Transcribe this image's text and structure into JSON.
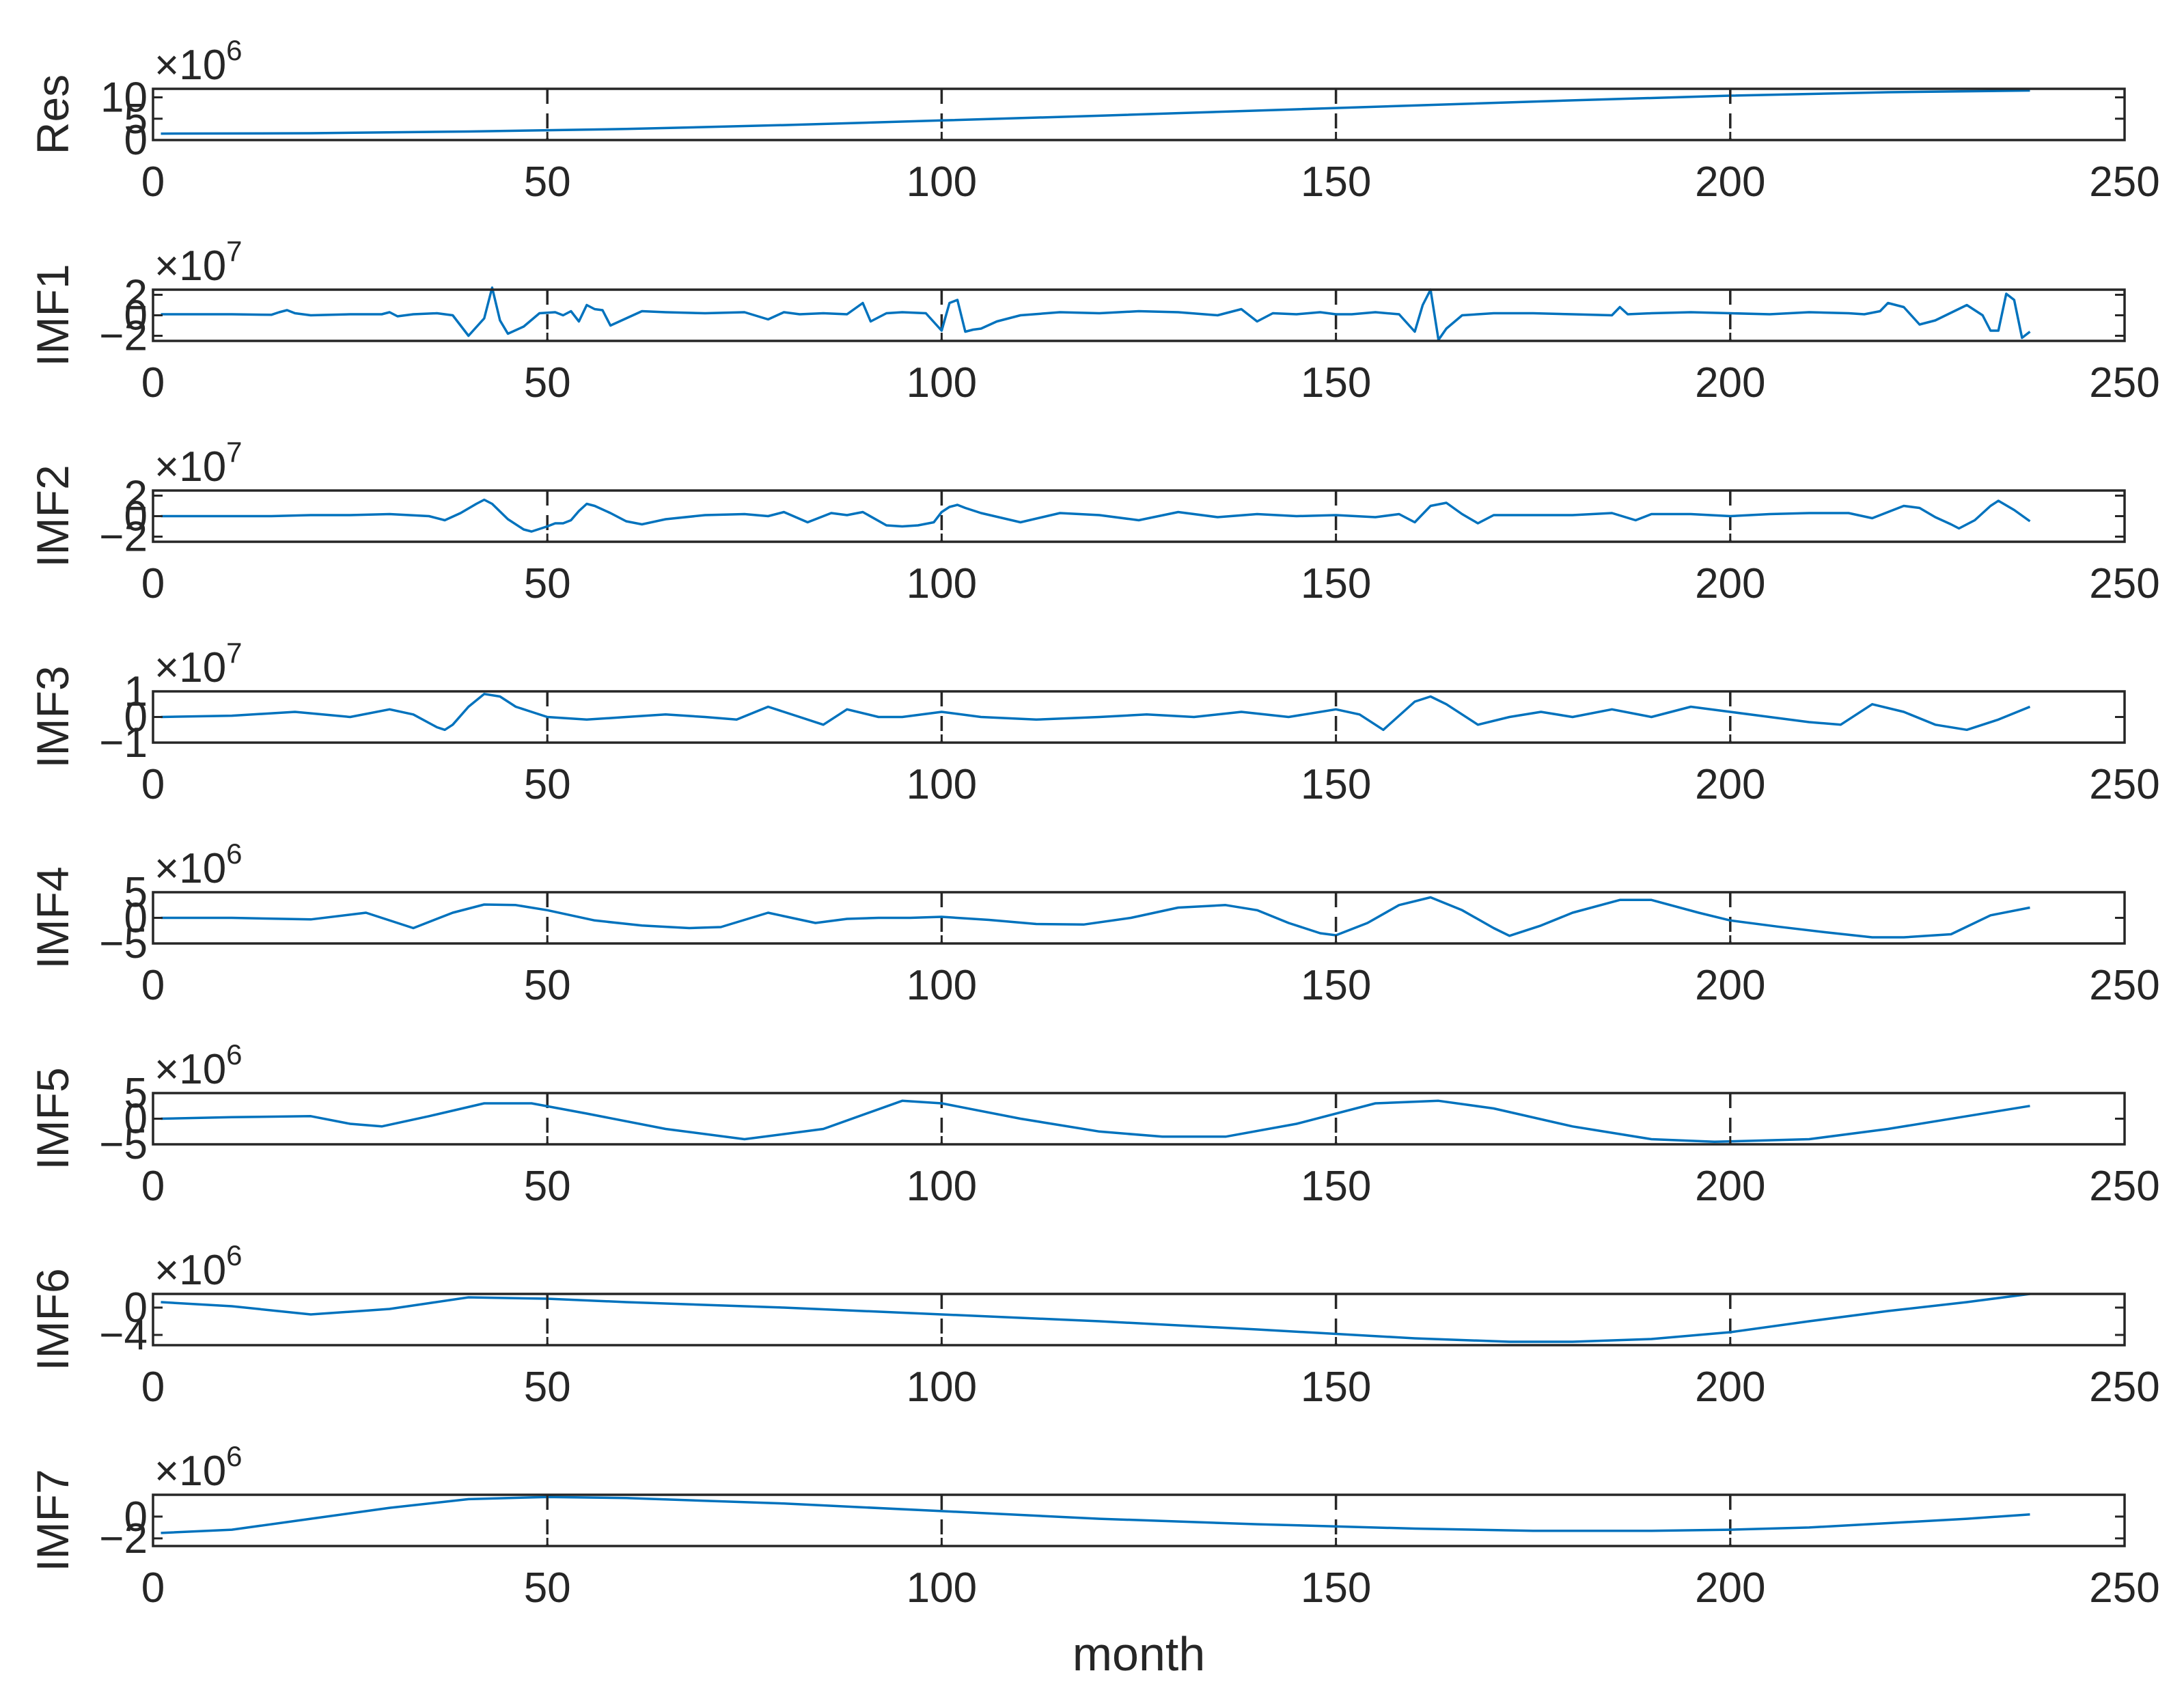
{
  "figure": {
    "xlabel": "month"
  },
  "chart_data": [
    {
      "type": "line",
      "ylabel": "Res",
      "exponent_base": "×10",
      "exponent_power": "6",
      "xlim": [
        0,
        250
      ],
      "x_ticks": [
        "0",
        "50",
        "100",
        "150",
        "200",
        "250"
      ],
      "x_ticks_num": [
        0,
        50,
        100,
        150,
        200,
        250
      ],
      "ylim": [
        0,
        12
      ],
      "y_ticks": [
        "0",
        "5",
        "10"
      ],
      "y_ticks_num": [
        0,
        5,
        10
      ],
      "dashed_vlines": [
        50,
        100,
        150,
        200
      ],
      "x": [
        1,
        20,
        40,
        60,
        80,
        100,
        120,
        140,
        160,
        180,
        200,
        220,
        238
      ],
      "values": [
        1.5,
        1.6,
        2.0,
        2.6,
        3.5,
        4.6,
        5.7,
        6.9,
        8.1,
        9.3,
        10.4,
        11.2,
        11.6
      ]
    },
    {
      "type": "line",
      "ylabel": "IMF1",
      "exponent_base": "×10",
      "exponent_power": "7",
      "xlim": [
        0,
        250
      ],
      "x_ticks": [
        "0",
        "50",
        "100",
        "150",
        "200",
        "250"
      ],
      "x_ticks_num": [
        0,
        50,
        100,
        150,
        200,
        250
      ],
      "ylim": [
        -2.5,
        2.5
      ],
      "y_ticks": [
        "-2",
        "0",
        "2"
      ],
      "y_ticks_num": [
        -2,
        0,
        2
      ],
      "dashed_vlines": [
        50,
        100,
        150,
        200
      ],
      "x": [
        1,
        10,
        15,
        16,
        17,
        18,
        20,
        25,
        29,
        30,
        31,
        33,
        36,
        38,
        40,
        42,
        43,
        44,
        45,
        47,
        49,
        51,
        52,
        53,
        54,
        55,
        56,
        57,
        58,
        60,
        62,
        65,
        70,
        75,
        78,
        80,
        82,
        85,
        88,
        90,
        91,
        93,
        95,
        98,
        100,
        101,
        102,
        103,
        104,
        105,
        107,
        110,
        115,
        120,
        125,
        130,
        135,
        138,
        140,
        142,
        145,
        148,
        150,
        152,
        155,
        158,
        160,
        161,
        162,
        163,
        164,
        166,
        170,
        175,
        180,
        185,
        186,
        187,
        190,
        195,
        200,
        205,
        210,
        215,
        217,
        219,
        220,
        222,
        224,
        226,
        230,
        232,
        233,
        234,
        235,
        236,
        237,
        238
      ],
      "values": [
        0.1,
        0.1,
        0.05,
        0.3,
        0.5,
        0.2,
        0.0,
        0.1,
        0.1,
        0.3,
        -0.1,
        0.1,
        0.2,
        0.0,
        -2.0,
        -0.3,
        2.7,
        -0.5,
        -1.8,
        -1.1,
        0.2,
        0.3,
        0.0,
        0.4,
        -0.6,
        1.0,
        0.6,
        0.5,
        -1.0,
        -0.3,
        0.4,
        0.3,
        0.2,
        0.3,
        -0.4,
        0.3,
        0.1,
        0.2,
        0.1,
        1.2,
        -0.6,
        0.2,
        0.3,
        0.2,
        -1.5,
        1.2,
        1.5,
        -1.6,
        -1.4,
        -1.3,
        -0.6,
        0.0,
        0.3,
        0.2,
        0.4,
        0.3,
        0.0,
        0.6,
        -0.6,
        0.2,
        0.1,
        0.3,
        0.1,
        0.1,
        0.3,
        0.1,
        -1.6,
        1.0,
        2.5,
        -2.4,
        -1.3,
        0.0,
        0.2,
        0.2,
        0.1,
        0.0,
        0.8,
        0.1,
        0.2,
        0.3,
        0.2,
        0.1,
        0.3,
        0.2,
        0.1,
        0.4,
        1.2,
        0.8,
        -0.9,
        -0.5,
        1.0,
        0.0,
        -1.5,
        -1.5,
        2.1,
        1.5,
        -2.2,
        -1.6
      ]
    },
    {
      "type": "line",
      "ylabel": "IMF2",
      "exponent_base": "×10",
      "exponent_power": "7",
      "xlim": [
        0,
        250
      ],
      "x_ticks": [
        "0",
        "50",
        "100",
        "150",
        "200",
        "250"
      ],
      "x_ticks_num": [
        0,
        50,
        100,
        150,
        200,
        250
      ],
      "ylim": [
        -2.5,
        2.5
      ],
      "y_ticks": [
        "-2",
        "0",
        "2"
      ],
      "y_ticks_num": [
        -2,
        0,
        2
      ],
      "dashed_vlines": [
        50,
        100,
        150,
        200
      ],
      "x": [
        1,
        15,
        20,
        25,
        30,
        35,
        37,
        39,
        41,
        42,
        43,
        45,
        47,
        48,
        50,
        51,
        52,
        53,
        54,
        55,
        56,
        58,
        60,
        62,
        65,
        70,
        75,
        78,
        80,
        83,
        86,
        88,
        90,
        93,
        95,
        97,
        99,
        100,
        101,
        102,
        103,
        105,
        110,
        115,
        120,
        125,
        130,
        135,
        140,
        145,
        150,
        155,
        158,
        160,
        162,
        164,
        166,
        168,
        170,
        175,
        180,
        185,
        188,
        190,
        195,
        200,
        205,
        210,
        215,
        218,
        220,
        222,
        224,
        226,
        228,
        229,
        231,
        233,
        234,
        236,
        238
      ],
      "values": [
        0.0,
        0.0,
        0.1,
        0.1,
        0.2,
        0.0,
        -0.4,
        0.3,
        1.2,
        1.6,
        1.2,
        -0.3,
        -1.3,
        -1.5,
        -1.0,
        -0.7,
        -0.7,
        -0.4,
        0.5,
        1.2,
        1.0,
        0.3,
        -0.5,
        -0.8,
        -0.3,
        0.1,
        0.2,
        0.0,
        0.4,
        -0.6,
        0.3,
        0.1,
        0.4,
        -0.9,
        -1.0,
        -0.9,
        -0.6,
        0.4,
        0.9,
        1.1,
        0.8,
        0.3,
        -0.6,
        0.3,
        0.1,
        -0.4,
        0.4,
        -0.1,
        0.2,
        0.0,
        0.1,
        -0.1,
        0.2,
        -0.6,
        1.0,
        1.3,
        0.2,
        -0.7,
        0.1,
        0.1,
        0.1,
        0.3,
        -0.4,
        0.2,
        0.2,
        0.0,
        0.2,
        0.3,
        0.3,
        -0.2,
        0.4,
        1.0,
        0.8,
        -0.1,
        -0.8,
        -1.2,
        -0.4,
        1.0,
        1.5,
        0.6,
        -0.5
      ]
    },
    {
      "type": "line",
      "ylabel": "IMF3",
      "exponent_base": "×10",
      "exponent_power": "7",
      "xlim": [
        0,
        250
      ],
      "x_ticks": [
        "0",
        "50",
        "100",
        "150",
        "200",
        "250"
      ],
      "x_ticks_num": [
        0,
        50,
        100,
        150,
        200,
        250
      ],
      "ylim": [
        -1,
        1
      ],
      "y_ticks": [
        "-1",
        "0",
        "1"
      ],
      "y_ticks_num": [
        -1,
        0,
        1
      ],
      "dashed_vlines": [
        50,
        100,
        150,
        200
      ],
      "x": [
        1,
        10,
        18,
        25,
        30,
        33,
        36,
        37,
        38,
        40,
        42,
        44,
        46,
        48,
        50,
        55,
        60,
        65,
        70,
        74,
        78,
        82,
        85,
        88,
        92,
        95,
        100,
        105,
        112,
        120,
        126,
        132,
        138,
        144,
        150,
        153,
        156,
        160,
        162,
        164,
        168,
        172,
        176,
        180,
        185,
        190,
        195,
        200,
        205,
        210,
        214,
        218,
        222,
        226,
        230,
        234,
        238
      ],
      "values": [
        0.0,
        0.05,
        0.2,
        0.0,
        0.3,
        0.1,
        -0.4,
        -0.5,
        -0.3,
        0.4,
        0.9,
        0.8,
        0.4,
        0.2,
        0.0,
        -0.1,
        0.0,
        0.1,
        0.0,
        -0.1,
        0.4,
        0.0,
        -0.3,
        0.3,
        0.0,
        0.0,
        0.2,
        0.0,
        -0.1,
        0.0,
        0.1,
        0.0,
        0.2,
        0.0,
        0.3,
        0.1,
        -0.5,
        0.6,
        0.8,
        0.5,
        -0.3,
        0.0,
        0.2,
        0.0,
        0.3,
        0.0,
        0.4,
        0.2,
        0.0,
        -0.2,
        -0.3,
        0.5,
        0.2,
        -0.3,
        -0.5,
        -0.1,
        0.4
      ]
    },
    {
      "type": "line",
      "ylabel": "IMF4",
      "exponent_base": "×10",
      "exponent_power": "6",
      "xlim": [
        0,
        250
      ],
      "x_ticks": [
        "0",
        "50",
        "100",
        "150",
        "200",
        "250"
      ],
      "x_ticks_num": [
        0,
        50,
        100,
        150,
        200,
        250
      ],
      "ylim": [
        -5,
        5
      ],
      "y_ticks": [
        "-5",
        "0",
        "5"
      ],
      "y_ticks_num": [
        -5,
        0,
        5
      ],
      "dashed_vlines": [
        50,
        100,
        150,
        200
      ],
      "x": [
        1,
        10,
        20,
        27,
        33,
        38,
        42,
        46,
        50,
        56,
        62,
        68,
        72,
        78,
        84,
        88,
        92,
        96,
        100,
        106,
        112,
        118,
        124,
        130,
        136,
        140,
        144,
        148,
        150,
        154,
        158,
        162,
        166,
        170,
        172,
        176,
        180,
        186,
        190,
        196,
        200,
        206,
        212,
        218,
        222,
        228,
        233,
        238
      ],
      "values": [
        0.0,
        0.0,
        -0.3,
        1.0,
        -2.0,
        1.0,
        2.6,
        2.5,
        1.5,
        -0.5,
        -1.5,
        -2.0,
        -1.8,
        1.0,
        -1.0,
        -0.2,
        0.0,
        0.0,
        0.2,
        -0.4,
        -1.2,
        -1.3,
        0.0,
        2.0,
        2.5,
        1.5,
        -1.0,
        -3.0,
        -3.4,
        -1.0,
        2.5,
        4.0,
        1.5,
        -2.0,
        -3.5,
        -1.5,
        1.0,
        3.5,
        3.5,
        1.0,
        -0.5,
        -1.7,
        -2.8,
        -3.8,
        -3.8,
        -3.2,
        0.5,
        2.0
      ]
    },
    {
      "type": "line",
      "ylabel": "IMF5",
      "exponent_base": "×10",
      "exponent_power": "6",
      "xlim": [
        0,
        250
      ],
      "x_ticks": [
        "0",
        "50",
        "100",
        "150",
        "200",
        "250"
      ],
      "x_ticks_num": [
        0,
        50,
        100,
        150,
        200,
        250
      ],
      "ylim": [
        -5,
        5
      ],
      "y_ticks": [
        "-5",
        "0",
        "5"
      ],
      "y_ticks_num": [
        -5,
        0,
        5
      ],
      "dashed_vlines": [
        50,
        100,
        150,
        200
      ],
      "x": [
        1,
        10,
        20,
        25,
        29,
        35,
        42,
        48,
        55,
        65,
        75,
        85,
        95,
        100,
        110,
        120,
        128,
        136,
        145,
        155,
        163,
        170,
        180,
        190,
        198,
        210,
        220,
        230,
        238
      ],
      "values": [
        0.0,
        0.3,
        0.5,
        -1.0,
        -1.5,
        0.5,
        3.0,
        3.0,
        1.0,
        -2.0,
        -4.0,
        -2.0,
        3.5,
        3.0,
        0.0,
        -2.5,
        -3.5,
        -3.5,
        -1.0,
        3.0,
        3.5,
        2.0,
        -1.5,
        -4.0,
        -4.5,
        -4.0,
        -2.0,
        0.5,
        2.5
      ]
    },
    {
      "type": "line",
      "ylabel": "IMF6",
      "exponent_base": "×10",
      "exponent_power": "6",
      "xlim": [
        0,
        250
      ],
      "x_ticks": [
        "0",
        "50",
        "100",
        "150",
        "200",
        "250"
      ],
      "x_ticks_num": [
        0,
        50,
        100,
        150,
        200,
        250
      ],
      "ylim": [
        -5.5,
        2
      ],
      "y_ticks": [
        "-4",
        "0"
      ],
      "y_ticks_num": [
        -4,
        0
      ],
      "dashed_vlines": [
        50,
        100,
        150,
        200
      ],
      "x": [
        1,
        10,
        20,
        30,
        40,
        50,
        60,
        80,
        100,
        120,
        140,
        160,
        172,
        180,
        190,
        200,
        210,
        220,
        230,
        238
      ],
      "values": [
        0.8,
        0.2,
        -1.0,
        -0.2,
        1.5,
        1.3,
        0.8,
        0.0,
        -1.0,
        -2.0,
        -3.2,
        -4.5,
        -5.0,
        -5.0,
        -4.6,
        -3.6,
        -2.0,
        -0.5,
        0.8,
        2.0
      ]
    },
    {
      "type": "line",
      "ylabel": "IMF7",
      "exponent_base": "×10",
      "exponent_power": "6",
      "xlim": [
        0,
        250
      ],
      "x_ticks": [
        "0",
        "50",
        "100",
        "150",
        "200",
        "250"
      ],
      "x_ticks_num": [
        0,
        50,
        100,
        150,
        200,
        250
      ],
      "ylim": [
        -2.7,
        2
      ],
      "y_ticks": [
        "-2",
        "0"
      ],
      "y_ticks_num": [
        -2,
        0
      ],
      "dashed_vlines": [
        50,
        100,
        150,
        200
      ],
      "x": [
        1,
        10,
        20,
        30,
        40,
        50,
        60,
        80,
        100,
        120,
        140,
        160,
        175,
        190,
        200,
        210,
        220,
        230,
        238
      ],
      "values": [
        -1.5,
        -1.2,
        -0.2,
        0.8,
        1.6,
        1.8,
        1.7,
        1.2,
        0.5,
        -0.2,
        -0.7,
        -1.1,
        -1.3,
        -1.3,
        -1.2,
        -1.0,
        -0.6,
        -0.2,
        0.2
      ]
    }
  ]
}
